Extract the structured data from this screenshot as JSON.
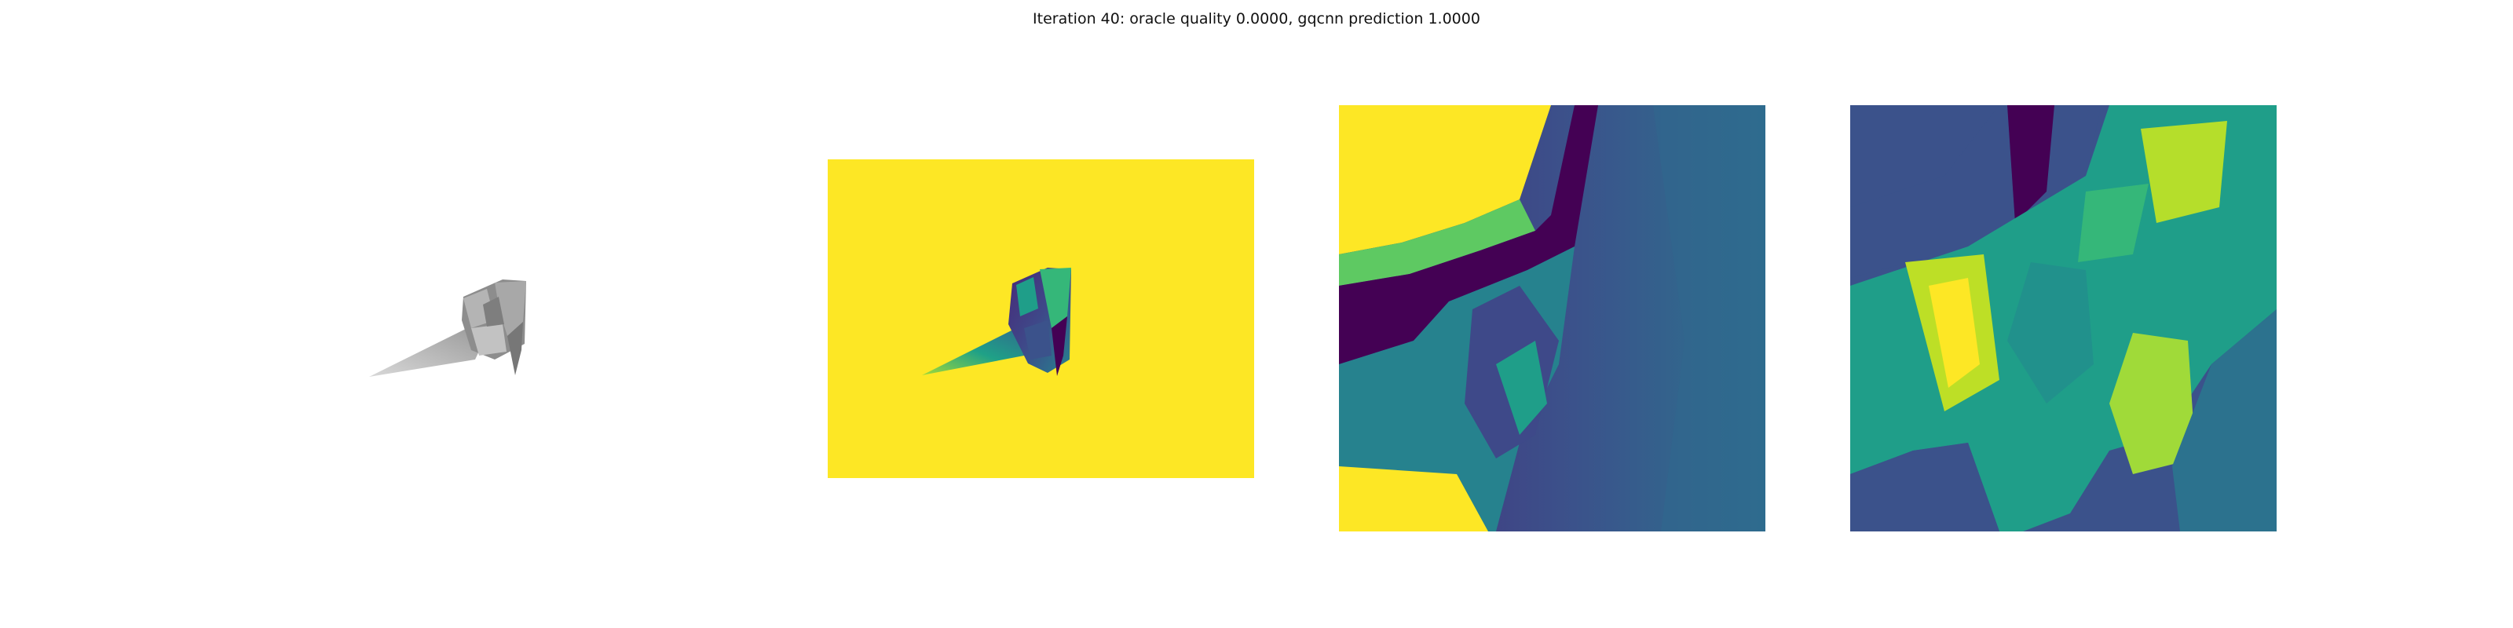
{
  "figure": {
    "title": "Iteration 40: oracle quality 0.0000, gqcnn prediction 1.0000"
  },
  "panels": [
    {
      "id": "rendered-object",
      "kind": "grayscale rendering"
    },
    {
      "id": "depth-image",
      "kind": "depth image",
      "colormap": "viridis"
    },
    {
      "id": "grasp-crop",
      "kind": "depth crop",
      "colormap": "viridis"
    },
    {
      "id": "grasp-crop-2",
      "kind": "depth crop",
      "colormap": "viridis"
    }
  ],
  "colors": {
    "viridis_yellow": "#fde725",
    "viridis_dark": "#440154",
    "viridis_blue": "#3b528b",
    "viridis_teal": "#21918c",
    "viridis_green": "#5ec962",
    "object_gray": "#a0a0a0",
    "background": "#ffffff"
  }
}
